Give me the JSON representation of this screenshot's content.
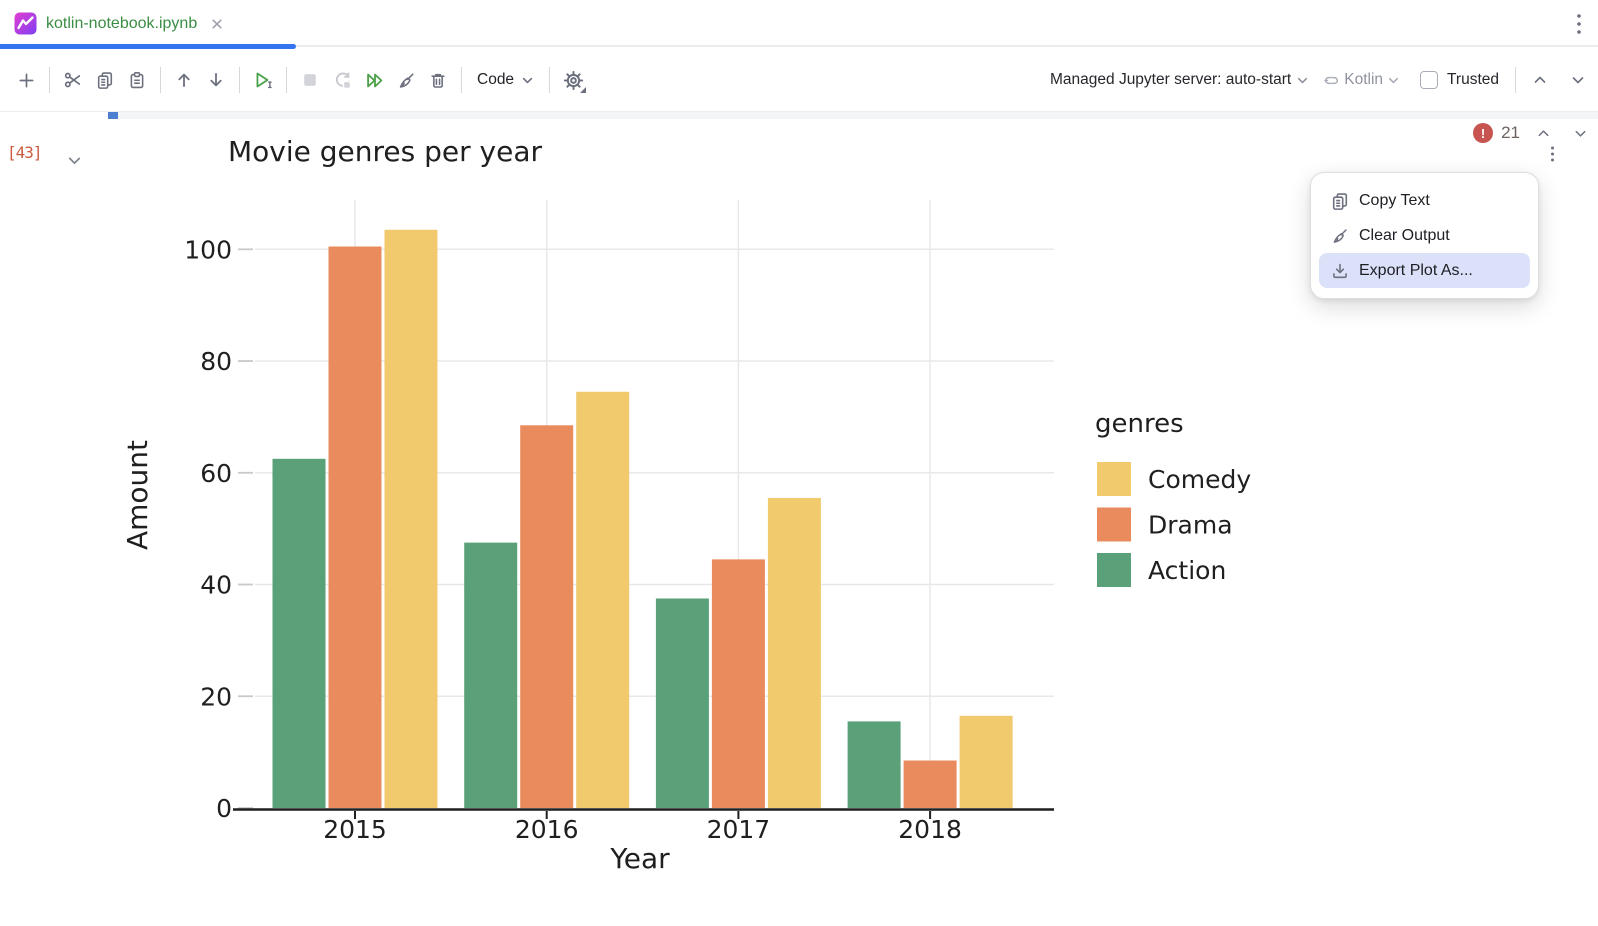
{
  "tab_bar": {
    "tab": {
      "title": "kotlin-notebook.ipynb",
      "modified_color": "#3A8D43"
    },
    "icons": [
      "kotlin-notebook-icon",
      "close-icon",
      "kebab-menu-icon"
    ]
  },
  "toolbar": {
    "left_icons": [
      "add-cell-icon",
      "cut-icon",
      "copy-icon",
      "paste-icon",
      "move-cell-up-icon",
      "move-cell-down-icon",
      "run-cell-icon",
      "stop-icon",
      "restart-kernel-icon",
      "run-all-icon",
      "clear-outputs-icon",
      "delete-cell-icon",
      "settings-gear-icon"
    ],
    "code_dropdown_label": "Code",
    "server_dropdown_label": "Managed Jupyter server: auto-start",
    "kernel_label": "Kotlin",
    "trusted_label": "Trusted",
    "trusted_checked": false
  },
  "cell": {
    "execution_count": "[43]",
    "error_badge": {
      "icon": "!",
      "count": "21"
    }
  },
  "context_menu": {
    "highlight_color": "#DBE1F9",
    "items": [
      {
        "label": "Copy Text",
        "icon": "copy-icon",
        "highlighted": false
      },
      {
        "label": "Clear Output",
        "icon": "broom-icon",
        "highlighted": false
      },
      {
        "label": "Export Plot As...",
        "icon": "download-icon",
        "highlighted": true
      }
    ]
  },
  "accent_colors": {
    "tab_indicator": "#3574F0",
    "error_red": "#C75450"
  },
  "chart_data": {
    "type": "bar",
    "title": "Movie genres per year",
    "xlabel": "Year",
    "ylabel": "Amount",
    "categories": [
      "2015",
      "2016",
      "2017",
      "2018"
    ],
    "series": [
      {
        "name": "Action",
        "color": "#5AA17A",
        "values": [
          62.5,
          47.5,
          37.5,
          15.5
        ]
      },
      {
        "name": "Drama",
        "color": "#EA8B5E",
        "values": [
          100.5,
          68.5,
          44.5,
          8.5
        ]
      },
      {
        "name": "Comedy",
        "color": "#F1CA6E",
        "values": [
          103.5,
          74.5,
          55.5,
          16.5
        ]
      }
    ],
    "legend": {
      "title": "genres",
      "entries": [
        "Comedy",
        "Drama",
        "Action"
      ],
      "position": "right"
    },
    "ylim": [
      0,
      109
    ],
    "yticks": [
      0,
      20,
      40,
      60,
      80,
      100
    ],
    "grid": true,
    "grid_color": "#E8E8E8"
  }
}
